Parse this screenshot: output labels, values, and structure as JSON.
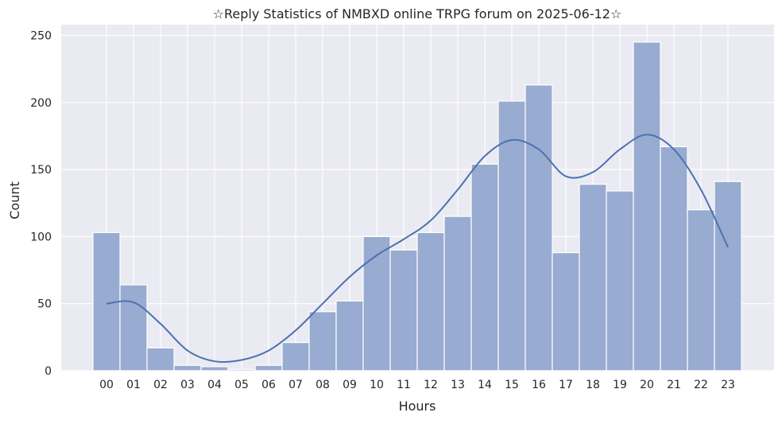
{
  "chart_data": {
    "type": "bar",
    "title": "☆Reply Statistics of NMBXD online TRPG forum on 2025-06-12☆",
    "xlabel": "Hours",
    "ylabel": "Count",
    "categories": [
      "00",
      "01",
      "02",
      "03",
      "04",
      "05",
      "06",
      "07",
      "08",
      "09",
      "10",
      "11",
      "12",
      "13",
      "14",
      "15",
      "16",
      "17",
      "18",
      "19",
      "20",
      "21",
      "22",
      "23"
    ],
    "values": [
      103,
      64,
      17,
      4,
      3,
      1,
      4,
      21,
      44,
      52,
      100,
      90,
      103,
      115,
      154,
      201,
      213,
      88,
      139,
      134,
      245,
      167,
      120,
      141
    ],
    "kde": [
      50,
      51,
      35,
      15,
      7,
      8,
      15,
      30,
      50,
      70,
      86,
      98,
      112,
      135,
      160,
      172,
      165,
      145,
      148,
      165,
      176,
      165,
      135,
      92
    ],
    "ylim": [
      0,
      258
    ],
    "yticks": [
      0,
      50,
      100,
      150,
      200,
      250
    ],
    "grid": true,
    "colors": {
      "bar": "#98abd0",
      "line": "#4c72b0",
      "background": "#eaeaf2"
    }
  }
}
